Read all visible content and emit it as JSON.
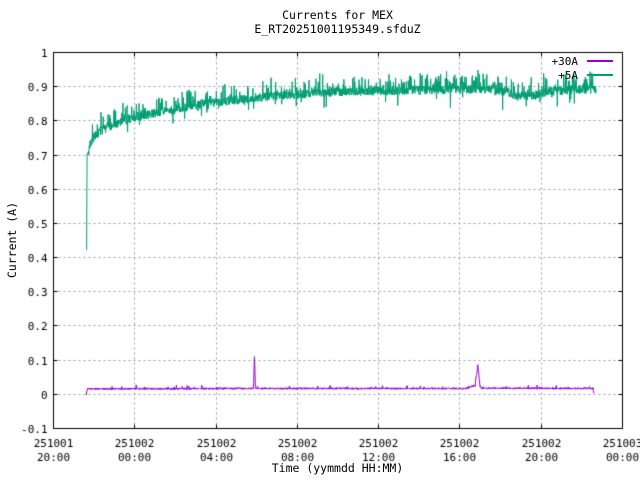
{
  "chart_data": {
    "type": "line",
    "title": "Currents for MEX",
    "subtitle": "E_RT20251001195349.sfduZ",
    "xlabel": "Time (yymmdd HH:MM)",
    "ylabel": "Current (A)",
    "background": "#ffffff",
    "frame_color": "#000000",
    "grid": true,
    "grid_color": "#9e9e9e",
    "legend_position": "top-right-inside",
    "ylim": [
      -0.1,
      1.0
    ],
    "ytick_step": 0.1,
    "y_tick_labels": [
      "-0.1",
      "0",
      "0.1",
      "0.2",
      "0.3",
      "0.4",
      "0.5",
      "0.6",
      "0.7",
      "0.8",
      "0.9",
      "1"
    ],
    "x_span_hours": 28,
    "x_ticks": [
      {
        "t": 0,
        "date": "251001",
        "time": "20:00"
      },
      {
        "t": 4,
        "date": "251002",
        "time": "00:00"
      },
      {
        "t": 8,
        "date": "251002",
        "time": "04:00"
      },
      {
        "t": 12,
        "date": "251002",
        "time": "08:00"
      },
      {
        "t": 16,
        "date": "251002",
        "time": "12:00"
      },
      {
        "t": 20,
        "date": "251002",
        "time": "16:00"
      },
      {
        "t": 24,
        "date": "251002",
        "time": "20:00"
      },
      {
        "t": 28,
        "date": "251003",
        "time": "00:00"
      }
    ],
    "series": [
      {
        "name": "+30A",
        "color": "#9400d3",
        "keypoints": [
          [
            1.62,
            0.0
          ],
          [
            1.66,
            0.016
          ],
          [
            9.84,
            0.017
          ],
          [
            9.89,
            0.115
          ],
          [
            9.94,
            0.017
          ],
          [
            20.3,
            0.017
          ],
          [
            20.75,
            0.026
          ],
          [
            20.88,
            0.085
          ],
          [
            21.0,
            0.018
          ],
          [
            26.55,
            0.017
          ],
          [
            26.6,
            0.0
          ]
        ],
        "noise": 0.0025,
        "spike_prob": 0.05,
        "spike_amp": 0.009,
        "down_spike_prob": 0.0,
        "down_spike_amp": 0.0
      },
      {
        "name": "+5A",
        "color": "#009e73",
        "keypoints": [
          [
            1.63,
            0.42
          ],
          [
            1.65,
            0.7
          ],
          [
            1.9,
            0.745
          ],
          [
            2.3,
            0.77
          ],
          [
            3.0,
            0.79
          ],
          [
            4.0,
            0.81
          ],
          [
            5.5,
            0.828
          ],
          [
            7.0,
            0.845
          ],
          [
            8.5,
            0.858
          ],
          [
            10.0,
            0.868
          ],
          [
            12.0,
            0.878
          ],
          [
            14.0,
            0.884
          ],
          [
            16.0,
            0.888
          ],
          [
            18.0,
            0.89
          ],
          [
            20.0,
            0.892
          ],
          [
            21.5,
            0.893
          ],
          [
            22.3,
            0.886
          ],
          [
            22.8,
            0.872
          ],
          [
            23.7,
            0.873
          ],
          [
            24.3,
            0.886
          ],
          [
            25.2,
            0.89
          ],
          [
            26.7,
            0.893
          ]
        ],
        "noise": 0.013,
        "spike_prob": 0.22,
        "spike_amp": 0.05,
        "down_spike_prob": 0.04,
        "down_spike_amp": 0.045
      }
    ]
  }
}
